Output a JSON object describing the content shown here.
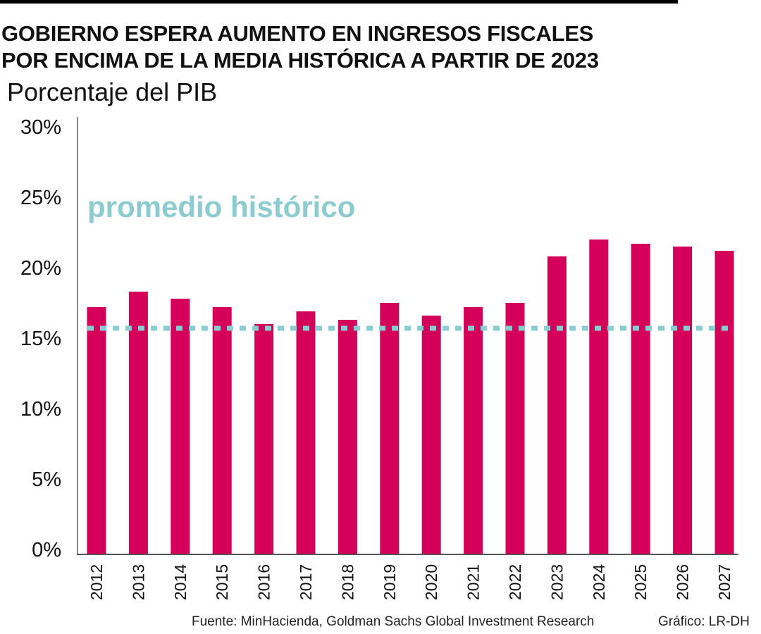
{
  "header": {
    "title_line1": "GOBIERNO ESPERA AUMENTO EN INGRESOS FISCALES",
    "title_line2": "POR ENCIMA DE LA MEDIA HISTÓRICA A PARTIR DE 2023",
    "subtitle": "Porcentaje del PIB"
  },
  "footer": {
    "source": "Fuente: MinHacienda, Goldman Sachs Global Investment Research",
    "credit": "Gráfico: LR-DH"
  },
  "chart_data": {
    "type": "bar",
    "title": "GOBIERNO ESPERA AUMENTO EN INGRESOS FISCALES POR ENCIMA DE LA MEDIA HISTÓRICA A PARTIR DE 2023",
    "ylabel": "Porcentaje del PIB",
    "categories": [
      "2012",
      "2013",
      "2014",
      "2015",
      "2016",
      "2017",
      "2018",
      "2019",
      "2020",
      "2021",
      "2022",
      "2023",
      "2024",
      "2025",
      "2026",
      "2027"
    ],
    "values": [
      17.5,
      18.6,
      18.1,
      17.5,
      16.3,
      17.2,
      16.6,
      17.8,
      16.9,
      17.5,
      17.8,
      21.1,
      22.3,
      22.0,
      21.8,
      21.5
    ],
    "ylim": [
      0,
      30
    ],
    "yticks": [
      0,
      5,
      10,
      15,
      20,
      25,
      30
    ],
    "ytick_labels": [
      "0%",
      "5%",
      "10%",
      "15%",
      "20%",
      "25%",
      "30%"
    ],
    "grid": false,
    "reference_line": {
      "label": "promedio histórico",
      "value": 16.0,
      "style": "dotted",
      "color": "#8ccbd0"
    },
    "bar_color": "#d4005a"
  }
}
